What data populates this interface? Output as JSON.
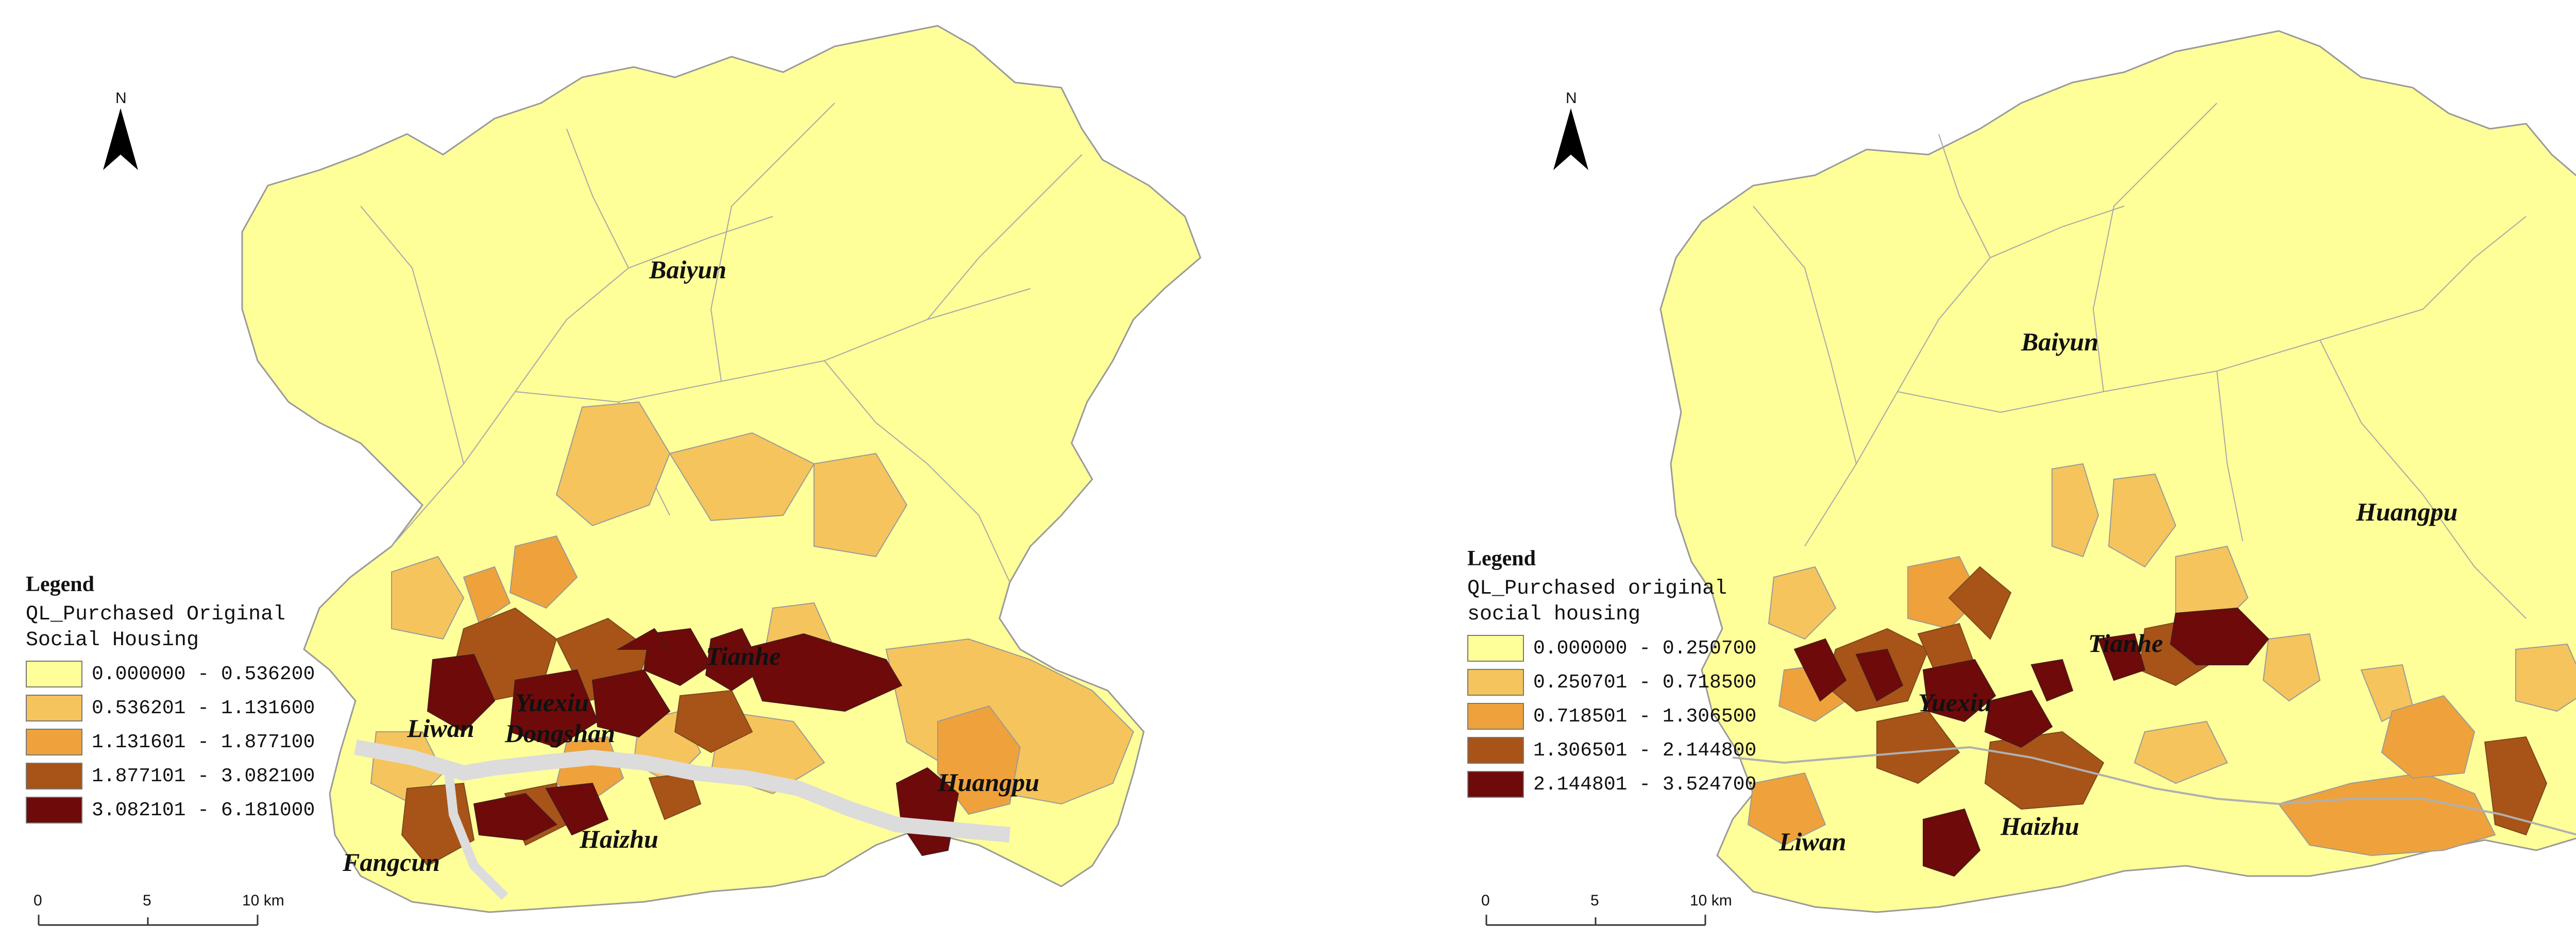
{
  "maps": [
    {
      "north_label": "N",
      "labels": {
        "baiyun": "Baiyun",
        "tianhe": "Tianhe",
        "yuexiu": "Yuexiu",
        "dongshan": "Dongshan",
        "liwan": "Liwan",
        "huangpu": "Huangpu",
        "haizhu": "Haizhu",
        "fangcun": "Fangcun"
      },
      "legend": {
        "heading": "Legend",
        "field_line1": "QL_Purchased Original",
        "field_line2": "Social Housing",
        "classes": [
          {
            "range": "0.000000 - 0.536200",
            "color": "#FFFF99"
          },
          {
            "range": "0.536201 - 1.131600",
            "color": "#F6C45C"
          },
          {
            "range": "1.131601 - 1.877100",
            "color": "#EFA23B"
          },
          {
            "range": "1.877101 - 3.082100",
            "color": "#A85418"
          },
          {
            "range": "3.082101 - 6.181000",
            "color": "#6E0A0A"
          }
        ]
      },
      "scale": {
        "tick0": "0",
        "tick1": "5",
        "tick2": "10 km"
      }
    },
    {
      "north_label": "N",
      "labels": {
        "baiyun": "Baiyun",
        "huangpu": "Huangpu",
        "tianhe": "Tianhe",
        "yuexiu": "Yuexiu",
        "liwan": "Liwan",
        "haizhu": "Haizhu"
      },
      "legend": {
        "heading": "Legend",
        "field_line1": "QL_Purchased original",
        "field_line2": "social housing",
        "classes": [
          {
            "range": "0.000000 - 0.250700",
            "color": "#FFFF99"
          },
          {
            "range": "0.250701 - 0.718500",
            "color": "#F6C45C"
          },
          {
            "range": "0.718501 - 1.306500",
            "color": "#EFA23B"
          },
          {
            "range": "1.306501 - 2.144800",
            "color": "#A85418"
          },
          {
            "range": "2.144801 - 3.524700",
            "color": "#6E0A0A"
          }
        ]
      },
      "scale": {
        "tick0": "0",
        "tick1": "5",
        "tick2": "10 km"
      }
    }
  ]
}
